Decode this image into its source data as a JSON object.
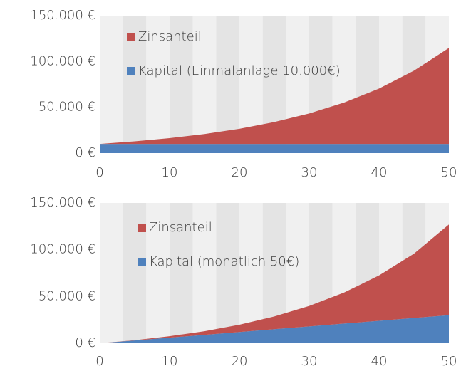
{
  "chart_data": [
    {
      "type": "stacked_area",
      "x": [
        0,
        5,
        10,
        15,
        20,
        25,
        30,
        35,
        40,
        45,
        50
      ],
      "series": [
        {
          "name": "Kapital (Einmalanlage 10.000€)",
          "color": "#4f81bd",
          "values": [
            10000,
            10000,
            10000,
            10000,
            10000,
            10000,
            10000,
            10000,
            10000,
            10000,
            10000
          ]
        },
        {
          "name": "Zinsanteil",
          "color": "#c0504d",
          "values": [
            0,
            2800,
            6300,
            10800,
            16500,
            23900,
            33200,
            45200,
            60400,
            79900,
            104700
          ]
        }
      ],
      "xlim": [
        0,
        50
      ],
      "xticks": [
        0,
        10,
        20,
        30,
        40,
        50
      ],
      "ylim": [
        0,
        150000
      ],
      "yticks": [
        {
          "value": 0,
          "label": "0 €"
        },
        {
          "value": 50000,
          "label": "50.000 €"
        },
        {
          "value": 100000,
          "label": "100.000 €"
        },
        {
          "value": 150000,
          "label": "150.000 €"
        }
      ],
      "legend": "upper left"
    },
    {
      "type": "stacked_area",
      "x": [
        0,
        5,
        10,
        15,
        20,
        25,
        30,
        35,
        40,
        45,
        50
      ],
      "series": [
        {
          "name": "Kapital (monatlich 50€)",
          "color": "#4f81bd",
          "values": [
            0,
            3000,
            6000,
            9000,
            12000,
            15000,
            18000,
            21000,
            24000,
            27000,
            30000
          ]
        },
        {
          "name": "Zinsanteil",
          "color": "#c0504d",
          "values": [
            0,
            300,
            1500,
            3900,
            7800,
            13600,
            21900,
            33200,
            48500,
            68800,
            97000
          ]
        }
      ],
      "xlim": [
        0,
        50
      ],
      "xticks": [
        0,
        10,
        20,
        30,
        40,
        50
      ],
      "ylim": [
        0,
        150000
      ],
      "yticks": [
        {
          "value": 0,
          "label": "0 €"
        },
        {
          "value": 50000,
          "label": "50.000 €"
        },
        {
          "value": 100000,
          "label": "100.000 €"
        },
        {
          "value": 150000,
          "label": "150.000 €"
        }
      ],
      "legend": "upper left"
    }
  ]
}
